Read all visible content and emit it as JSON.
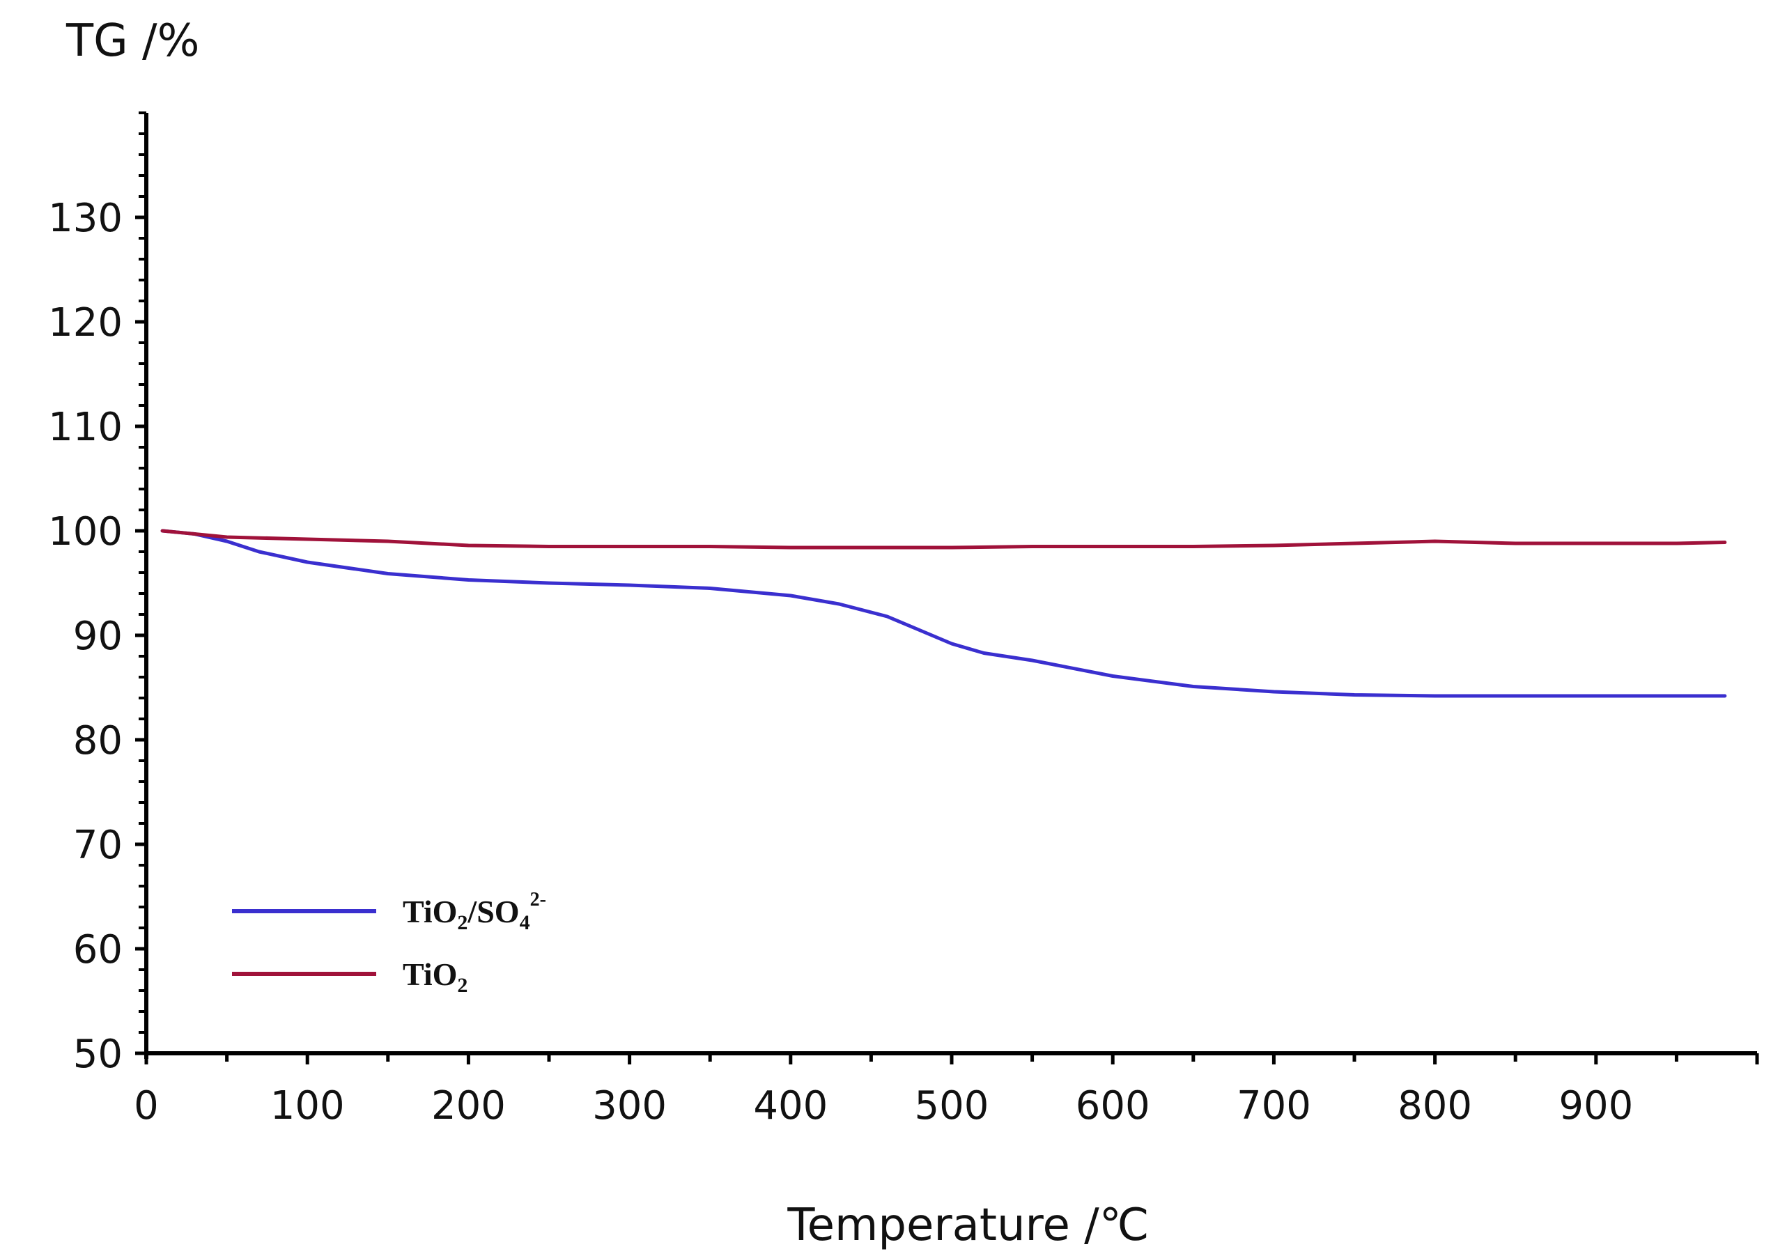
{
  "chart_data": {
    "type": "line",
    "xlabel": "Temperature /℃",
    "ylabel": "TG /%",
    "xlim": [
      0,
      1000
    ],
    "ylim": [
      50,
      140
    ],
    "xticks": [
      0,
      100,
      200,
      300,
      400,
      500,
      600,
      700,
      800,
      900
    ],
    "yticks": [
      50,
      60,
      70,
      80,
      90,
      100,
      110,
      120,
      130
    ],
    "grid": false,
    "legend_position": "bottom-left",
    "series": [
      {
        "name": "TiO2/SO4 2-",
        "label_base": "TiO",
        "label_sub1": "2",
        "label_mid": "/SO",
        "label_sub2": "4",
        "label_sup": "2-",
        "color": "#3a2fcf",
        "x": [
          10,
          30,
          50,
          70,
          100,
          150,
          200,
          250,
          300,
          350,
          400,
          430,
          460,
          480,
          500,
          520,
          550,
          600,
          650,
          700,
          750,
          800,
          850,
          900,
          950,
          980
        ],
        "y": [
          100.0,
          99.7,
          99.0,
          98.0,
          97.0,
          95.9,
          95.3,
          95.0,
          94.8,
          94.5,
          93.8,
          93.0,
          91.8,
          90.5,
          89.2,
          88.3,
          87.6,
          86.1,
          85.1,
          84.6,
          84.3,
          84.2,
          84.2,
          84.2,
          84.2,
          84.2
        ]
      },
      {
        "name": "TiO2",
        "label_base": "TiO",
        "label_sub1": "2",
        "color": "#a0123a",
        "x": [
          10,
          50,
          100,
          150,
          200,
          250,
          300,
          350,
          400,
          450,
          500,
          550,
          600,
          650,
          700,
          750,
          800,
          850,
          900,
          950,
          980
        ],
        "y": [
          100.0,
          99.4,
          99.2,
          99.0,
          98.6,
          98.5,
          98.5,
          98.5,
          98.4,
          98.4,
          98.4,
          98.5,
          98.5,
          98.5,
          98.6,
          98.8,
          99.0,
          98.8,
          98.8,
          98.8,
          98.9
        ]
      }
    ]
  }
}
